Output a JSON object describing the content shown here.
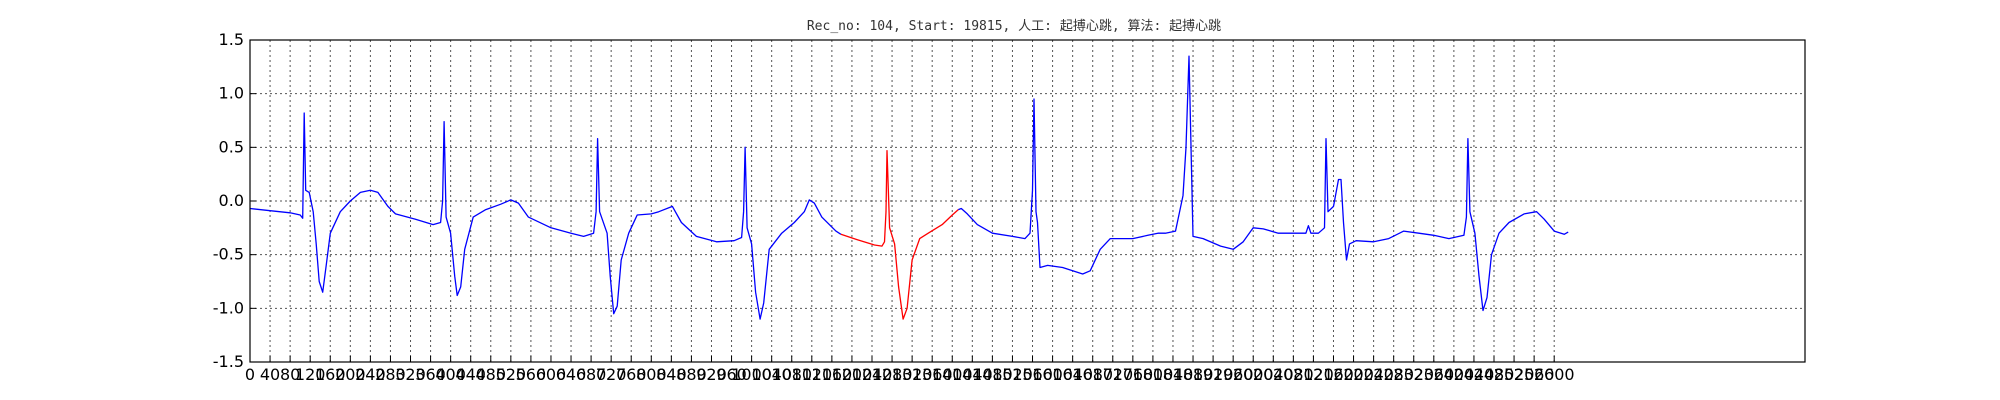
{
  "chart_data": {
    "type": "line",
    "title": "Rec_no: 104, Start: 19815, 人工: 起搏心跳, 算法: 起搏心跳",
    "xlabel": "",
    "ylabel": "",
    "xlim": [
      0,
      3100
    ],
    "ylim": [
      -1.5,
      1.5
    ],
    "grid": true,
    "x_tick_labels": [
      "0",
      "40",
      "80",
      "120",
      "160",
      "200",
      "240",
      "280",
      "320",
      "360",
      "400",
      "440",
      "480",
      "520",
      "560",
      "600",
      "640",
      "680",
      "720",
      "760",
      "800",
      "840",
      "880",
      "920",
      "960",
      "1000",
      "1040",
      "1080",
      "1120",
      "1160",
      "1200",
      "1240",
      "1280",
      "1320",
      "1360",
      "1400",
      "1440",
      "1480",
      "1520",
      "1560",
      "1600",
      "1640",
      "1680",
      "1720",
      "1760",
      "1800",
      "1840",
      "1880",
      "1920",
      "1960",
      "2000",
      "2040",
      "2080",
      "2120",
      "2160",
      "2200",
      "2240",
      "2280",
      "2320",
      "2360",
      "2400",
      "2440",
      "2480",
      "2520",
      "2560",
      "2600"
    ],
    "y_tick_labels": [
      "1.5",
      "1.0",
      "0.5",
      "0.0",
      "-0.5",
      "-1.0",
      "-1.5"
    ],
    "y_ticks": [
      1.5,
      1.0,
      0.5,
      0.0,
      -0.5,
      -1.0,
      -1.5
    ],
    "x_ticks": [
      0,
      40,
      80,
      120,
      160,
      200,
      240,
      280,
      320,
      360,
      400,
      440,
      480,
      520,
      560,
      600,
      640,
      680,
      720,
      760,
      800,
      840,
      880,
      920,
      960,
      1000,
      1040,
      1080,
      1120,
      1160,
      1200,
      1240,
      1280,
      1320,
      1360,
      1400,
      1440,
      1480,
      1520,
      1560,
      1600,
      1640,
      1680,
      1720,
      1760,
      1800,
      1840,
      1880,
      1920,
      1960,
      2000,
      2040,
      2080,
      2120,
      2160,
      2200,
      2240,
      2280,
      2320,
      2360,
      2400,
      2440,
      2480,
      2520,
      2560,
      2600
    ],
    "series": [
      {
        "color": "#0000ff",
        "points": [
          [
            0,
            -0.07
          ],
          [
            40,
            -0.09
          ],
          [
            80,
            -0.11
          ],
          [
            100,
            -0.13
          ],
          [
            105,
            -0.16
          ],
          [
            108,
            0.82
          ],
          [
            111,
            0.1
          ],
          [
            118,
            0.08
          ],
          [
            126,
            -0.1
          ],
          [
            132,
            -0.4
          ],
          [
            138,
            -0.75
          ],
          [
            145,
            -0.85
          ],
          [
            152,
            -0.6
          ],
          [
            160,
            -0.3
          ],
          [
            180,
            -0.1
          ],
          [
            200,
            0.0
          ],
          [
            220,
            0.08
          ],
          [
            240,
            0.1
          ],
          [
            255,
            0.08
          ],
          [
            275,
            -0.05
          ],
          [
            290,
            -0.12
          ],
          [
            330,
            -0.17
          ],
          [
            365,
            -0.22
          ],
          [
            380,
            -0.2
          ],
          [
            384,
            0.0
          ],
          [
            387,
            0.74
          ],
          [
            391,
            -0.15
          ],
          [
            400,
            -0.3
          ],
          [
            408,
            -0.7
          ],
          [
            413,
            -0.88
          ],
          [
            420,
            -0.8
          ],
          [
            428,
            -0.45
          ],
          [
            445,
            -0.15
          ],
          [
            470,
            -0.08
          ],
          [
            500,
            -0.03
          ],
          [
            520,
            0.01
          ],
          [
            535,
            -0.02
          ],
          [
            555,
            -0.15
          ],
          [
            600,
            -0.25
          ],
          [
            640,
            -0.3
          ],
          [
            665,
            -0.33
          ],
          [
            685,
            -0.3
          ],
          [
            690,
            -0.1
          ],
          [
            693,
            0.58
          ],
          [
            697,
            -0.1
          ],
          [
            712,
            -0.3
          ],
          [
            718,
            -0.7
          ],
          [
            725,
            -1.05
          ],
          [
            732,
            -0.98
          ],
          [
            740,
            -0.55
          ],
          [
            755,
            -0.3
          ],
          [
            772,
            -0.13
          ],
          [
            800,
            -0.12
          ],
          [
            815,
            -0.1
          ],
          [
            842,
            -0.05
          ],
          [
            860,
            -0.2
          ],
          [
            890,
            -0.33
          ],
          [
            930,
            -0.38
          ],
          [
            965,
            -0.37
          ],
          [
            980,
            -0.34
          ],
          [
            984,
            -0.1
          ],
          [
            987,
            0.5
          ],
          [
            991,
            -0.25
          ],
          [
            1000,
            -0.4
          ],
          [
            1008,
            -0.85
          ],
          [
            1017,
            -1.1
          ],
          [
            1024,
            -0.95
          ],
          [
            1035,
            -0.45
          ],
          [
            1060,
            -0.3
          ],
          [
            1085,
            -0.2
          ],
          [
            1105,
            -0.1
          ],
          [
            1115,
            0.01
          ],
          [
            1125,
            -0.02
          ],
          [
            1140,
            -0.15
          ],
          [
            1168,
            -0.28
          ],
          [
            1178,
            -0.31
          ]
        ]
      },
      {
        "color": "#ff0000",
        "points": [
          [
            1178,
            -0.31
          ],
          [
            1210,
            -0.36
          ],
          [
            1245,
            -0.41
          ],
          [
            1260,
            -0.42
          ],
          [
            1265,
            -0.38
          ],
          [
            1268,
            -0.1
          ],
          [
            1270,
            0.47
          ],
          [
            1275,
            -0.25
          ],
          [
            1285,
            -0.4
          ],
          [
            1293,
            -0.8
          ],
          [
            1302,
            -1.1
          ],
          [
            1310,
            -1.0
          ],
          [
            1320,
            -0.55
          ],
          [
            1335,
            -0.35
          ],
          [
            1352,
            -0.3
          ],
          [
            1380,
            -0.22
          ],
          [
            1400,
            -0.13
          ],
          [
            1412,
            -0.08
          ]
        ]
      },
      {
        "color": "#0000ff",
        "points": [
          [
            1412,
            -0.08
          ],
          [
            1418,
            -0.07
          ],
          [
            1430,
            -0.12
          ],
          [
            1450,
            -0.22
          ],
          [
            1480,
            -0.3
          ],
          [
            1520,
            -0.33
          ],
          [
            1545,
            -0.35
          ],
          [
            1555,
            -0.3
          ],
          [
            1560,
            0.1
          ],
          [
            1563,
            0.95
          ],
          [
            1567,
            -0.1
          ],
          [
            1570,
            -0.2
          ],
          [
            1575,
            -0.62
          ],
          [
            1590,
            -0.6
          ],
          [
            1620,
            -0.62
          ],
          [
            1660,
            -0.68
          ],
          [
            1675,
            -0.65
          ],
          [
            1695,
            -0.45
          ],
          [
            1715,
            -0.35
          ],
          [
            1760,
            -0.35
          ],
          [
            1790,
            -0.32
          ],
          [
            1810,
            -0.3
          ],
          [
            1825,
            -0.3
          ],
          [
            1845,
            -0.28
          ],
          [
            1860,
            0.05
          ],
          [
            1866,
            0.5
          ],
          [
            1872,
            1.35
          ],
          [
            1877,
            0.3
          ],
          [
            1880,
            -0.33
          ],
          [
            1900,
            -0.35
          ],
          [
            1935,
            -0.42
          ],
          [
            1960,
            -0.45
          ],
          [
            1980,
            -0.38
          ],
          [
            2000,
            -0.25
          ],
          [
            2020,
            -0.26
          ],
          [
            2050,
            -0.3
          ],
          [
            2080,
            -0.3
          ],
          [
            2105,
            -0.3
          ],
          [
            2110,
            -0.23
          ],
          [
            2115,
            -0.3
          ],
          [
            2130,
            -0.3
          ],
          [
            2142,
            -0.25
          ],
          [
            2145,
            0.58
          ],
          [
            2149,
            -0.1
          ],
          [
            2160,
            -0.05
          ],
          [
            2170,
            0.2
          ],
          [
            2175,
            0.2
          ],
          [
            2180,
            -0.2
          ],
          [
            2186,
            -0.55
          ],
          [
            2192,
            -0.4
          ],
          [
            2205,
            -0.37
          ],
          [
            2240,
            -0.38
          ],
          [
            2270,
            -0.35
          ],
          [
            2300,
            -0.28
          ],
          [
            2330,
            -0.3
          ],
          [
            2360,
            -0.32
          ],
          [
            2390,
            -0.35
          ],
          [
            2420,
            -0.32
          ],
          [
            2425,
            -0.15
          ],
          [
            2428,
            0.58
          ],
          [
            2432,
            -0.1
          ],
          [
            2442,
            -0.3
          ],
          [
            2450,
            -0.7
          ],
          [
            2458,
            -1.02
          ],
          [
            2466,
            -0.9
          ],
          [
            2475,
            -0.5
          ],
          [
            2490,
            -0.3
          ],
          [
            2510,
            -0.2
          ],
          [
            2540,
            -0.12
          ],
          [
            2565,
            -0.1
          ],
          [
            2580,
            -0.17
          ],
          [
            2600,
            -0.28
          ],
          [
            2620,
            -0.31
          ],
          [
            2628,
            -0.29
          ]
        ]
      }
    ]
  }
}
